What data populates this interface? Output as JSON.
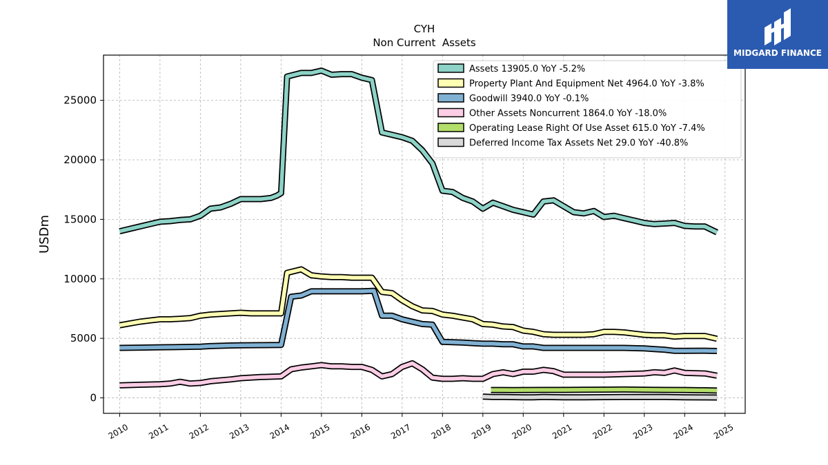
{
  "logo": {
    "text": "MIDGARD FINANCE"
  },
  "chart_data": {
    "type": "line",
    "title": "CYH",
    "subtitle": "Non Current  Assets",
    "xlabel": "",
    "ylabel": "USDm",
    "xlim": [
      2009.6,
      2025.5
    ],
    "ylim": [
      -1300,
      28800
    ],
    "yticks": [
      0,
      5000,
      10000,
      15000,
      20000,
      25000
    ],
    "xticks": [
      "2010",
      "2011",
      "2012",
      "2013",
      "2014",
      "2015",
      "2016",
      "2017",
      "2018",
      "2019",
      "2020",
      "2021",
      "2022",
      "2023",
      "2024",
      "2025"
    ],
    "grid": true,
    "legend_position": "top-right",
    "series": [
      {
        "name": "Assets",
        "legend": "Assets  13905.0 YoY -5.2%",
        "color": "#8dd3c7",
        "points": [
          [
            2010.0,
            14000
          ],
          [
            2010.25,
            14200
          ],
          [
            2010.5,
            14400
          ],
          [
            2010.75,
            14600
          ],
          [
            2011.0,
            14800
          ],
          [
            2011.25,
            14850
          ],
          [
            2011.5,
            14950
          ],
          [
            2011.75,
            15000
          ],
          [
            2012.0,
            15300
          ],
          [
            2012.25,
            15900
          ],
          [
            2012.5,
            16000
          ],
          [
            2012.75,
            16300
          ],
          [
            2013.0,
            16700
          ],
          [
            2013.25,
            16700
          ],
          [
            2013.5,
            16700
          ],
          [
            2013.75,
            16800
          ],
          [
            2013.9,
            17000
          ],
          [
            2014.0,
            17200
          ],
          [
            2014.15,
            27000
          ],
          [
            2014.5,
            27300
          ],
          [
            2014.75,
            27300
          ],
          [
            2015.0,
            27500
          ],
          [
            2015.25,
            27150
          ],
          [
            2015.5,
            27200
          ],
          [
            2015.75,
            27200
          ],
          [
            2016.0,
            26900
          ],
          [
            2016.25,
            26700
          ],
          [
            2016.5,
            22300
          ],
          [
            2016.75,
            22100
          ],
          [
            2017.0,
            21900
          ],
          [
            2017.25,
            21600
          ],
          [
            2017.5,
            20800
          ],
          [
            2017.75,
            19700
          ],
          [
            2018.0,
            17400
          ],
          [
            2018.25,
            17300
          ],
          [
            2018.5,
            16800
          ],
          [
            2018.75,
            16500
          ],
          [
            2019.0,
            15900
          ],
          [
            2019.25,
            16400
          ],
          [
            2019.5,
            16100
          ],
          [
            2019.75,
            15800
          ],
          [
            2020.0,
            15600
          ],
          [
            2020.25,
            15400
          ],
          [
            2020.5,
            16500
          ],
          [
            2020.75,
            16600
          ],
          [
            2021.0,
            16100
          ],
          [
            2021.25,
            15600
          ],
          [
            2021.5,
            15500
          ],
          [
            2021.75,
            15700
          ],
          [
            2022.0,
            15200
          ],
          [
            2022.25,
            15300
          ],
          [
            2022.5,
            15100
          ],
          [
            2022.75,
            14900
          ],
          [
            2023.0,
            14700
          ],
          [
            2023.25,
            14600
          ],
          [
            2023.5,
            14650
          ],
          [
            2023.75,
            14700
          ],
          [
            2024.0,
            14450
          ],
          [
            2024.25,
            14400
          ],
          [
            2024.5,
            14400
          ],
          [
            2024.8,
            13905
          ]
        ]
      },
      {
        "name": "Property Plant And Equipment Net",
        "legend": "Property Plant And Equipment Net  4964.0 YoY -3.8%",
        "color": "#ffffb3",
        "points": [
          [
            2010.0,
            6100
          ],
          [
            2010.25,
            6250
          ],
          [
            2010.5,
            6400
          ],
          [
            2010.75,
            6500
          ],
          [
            2011.0,
            6600
          ],
          [
            2011.25,
            6600
          ],
          [
            2011.5,
            6650
          ],
          [
            2011.75,
            6700
          ],
          [
            2012.0,
            6900
          ],
          [
            2012.25,
            7000
          ],
          [
            2012.5,
            7050
          ],
          [
            2012.75,
            7100
          ],
          [
            2013.0,
            7150
          ],
          [
            2013.25,
            7100
          ],
          [
            2013.5,
            7100
          ],
          [
            2013.75,
            7100
          ],
          [
            2014.0,
            7100
          ],
          [
            2014.15,
            10500
          ],
          [
            2014.5,
            10800
          ],
          [
            2014.75,
            10300
          ],
          [
            2015.0,
            10200
          ],
          [
            2015.25,
            10150
          ],
          [
            2015.5,
            10150
          ],
          [
            2015.75,
            10100
          ],
          [
            2016.0,
            10100
          ],
          [
            2016.25,
            10100
          ],
          [
            2016.5,
            8900
          ],
          [
            2016.75,
            8800
          ],
          [
            2017.0,
            8200
          ],
          [
            2017.25,
            7700
          ],
          [
            2017.5,
            7350
          ],
          [
            2017.75,
            7300
          ],
          [
            2018.0,
            7000
          ],
          [
            2018.25,
            6900
          ],
          [
            2018.5,
            6750
          ],
          [
            2018.75,
            6600
          ],
          [
            2019.0,
            6200
          ],
          [
            2019.25,
            6150
          ],
          [
            2019.5,
            6000
          ],
          [
            2019.75,
            5950
          ],
          [
            2020.0,
            5650
          ],
          [
            2020.25,
            5550
          ],
          [
            2020.5,
            5350
          ],
          [
            2020.75,
            5300
          ],
          [
            2021.0,
            5300
          ],
          [
            2021.25,
            5300
          ],
          [
            2021.5,
            5300
          ],
          [
            2021.75,
            5350
          ],
          [
            2022.0,
            5550
          ],
          [
            2022.25,
            5550
          ],
          [
            2022.5,
            5500
          ],
          [
            2022.75,
            5400
          ],
          [
            2023.0,
            5300
          ],
          [
            2023.25,
            5250
          ],
          [
            2023.5,
            5250
          ],
          [
            2023.75,
            5150
          ],
          [
            2024.0,
            5200
          ],
          [
            2024.25,
            5200
          ],
          [
            2024.5,
            5200
          ],
          [
            2024.8,
            4964
          ]
        ]
      },
      {
        "name": "Goodwill",
        "legend": "Goodwill  3940.0 YoY -0.1%",
        "color": "#80b1d3",
        "points": [
          [
            2010.0,
            4200
          ],
          [
            2010.5,
            4220
          ],
          [
            2011.0,
            4250
          ],
          [
            2011.5,
            4270
          ],
          [
            2012.0,
            4300
          ],
          [
            2012.25,
            4350
          ],
          [
            2012.75,
            4400
          ],
          [
            2013.0,
            4420
          ],
          [
            2013.5,
            4430
          ],
          [
            2014.0,
            4450
          ],
          [
            2014.25,
            8500
          ],
          [
            2014.5,
            8600
          ],
          [
            2014.75,
            8950
          ],
          [
            2015.0,
            8950
          ],
          [
            2015.5,
            8950
          ],
          [
            2016.0,
            8950
          ],
          [
            2016.3,
            9000
          ],
          [
            2016.5,
            6900
          ],
          [
            2016.75,
            6900
          ],
          [
            2017.0,
            6600
          ],
          [
            2017.25,
            6400
          ],
          [
            2017.5,
            6200
          ],
          [
            2017.75,
            6150
          ],
          [
            2018.0,
            4700
          ],
          [
            2018.25,
            4680
          ],
          [
            2018.5,
            4650
          ],
          [
            2018.75,
            4600
          ],
          [
            2019.0,
            4550
          ],
          [
            2019.25,
            4550
          ],
          [
            2019.5,
            4500
          ],
          [
            2019.75,
            4500
          ],
          [
            2020.0,
            4320
          ],
          [
            2020.25,
            4320
          ],
          [
            2020.5,
            4200
          ],
          [
            2020.75,
            4200
          ],
          [
            2021.0,
            4200
          ],
          [
            2021.5,
            4200
          ],
          [
            2022.0,
            4200
          ],
          [
            2022.5,
            4200
          ],
          [
            2023.0,
            4150
          ],
          [
            2023.25,
            4100
          ],
          [
            2023.5,
            4050
          ],
          [
            2023.75,
            3950
          ],
          [
            2024.0,
            3950
          ],
          [
            2024.5,
            3960
          ],
          [
            2024.8,
            3940
          ]
        ]
      },
      {
        "name": "Other Assets Noncurrent",
        "legend": "Other Assets Noncurrent  1864.0 YoY -18.0%",
        "color": "#fccde5",
        "points": [
          [
            2010.0,
            1050
          ],
          [
            2010.5,
            1100
          ],
          [
            2011.0,
            1150
          ],
          [
            2011.25,
            1200
          ],
          [
            2011.5,
            1350
          ],
          [
            2011.75,
            1200
          ],
          [
            2012.0,
            1250
          ],
          [
            2012.25,
            1400
          ],
          [
            2012.75,
            1550
          ],
          [
            2013.0,
            1650
          ],
          [
            2013.5,
            1750
          ],
          [
            2014.0,
            1800
          ],
          [
            2014.25,
            2400
          ],
          [
            2014.5,
            2550
          ],
          [
            2014.75,
            2650
          ],
          [
            2015.0,
            2750
          ],
          [
            2015.25,
            2650
          ],
          [
            2015.5,
            2650
          ],
          [
            2015.75,
            2600
          ],
          [
            2016.0,
            2600
          ],
          [
            2016.25,
            2350
          ],
          [
            2016.5,
            1800
          ],
          [
            2016.75,
            2000
          ],
          [
            2017.0,
            2600
          ],
          [
            2017.25,
            2900
          ],
          [
            2017.5,
            2400
          ],
          [
            2017.75,
            1700
          ],
          [
            2018.0,
            1600
          ],
          [
            2018.25,
            1600
          ],
          [
            2018.5,
            1650
          ],
          [
            2018.75,
            1600
          ],
          [
            2019.0,
            1600
          ],
          [
            2019.25,
            2000
          ],
          [
            2019.5,
            2150
          ],
          [
            2019.75,
            2000
          ],
          [
            2020.0,
            2200
          ],
          [
            2020.25,
            2200
          ],
          [
            2020.5,
            2350
          ],
          [
            2020.75,
            2250
          ],
          [
            2021.0,
            1950
          ],
          [
            2021.5,
            1950
          ],
          [
            2022.0,
            1950
          ],
          [
            2022.5,
            2000
          ],
          [
            2023.0,
            2050
          ],
          [
            2023.25,
            2150
          ],
          [
            2023.5,
            2100
          ],
          [
            2023.75,
            2300
          ],
          [
            2024.0,
            2100
          ],
          [
            2024.5,
            2050
          ],
          [
            2024.8,
            1864
          ]
        ]
      },
      {
        "name": "Operating Lease Right Of Use Asset",
        "legend": "Operating Lease Right Of Use Asset  615.0 YoY -7.4%",
        "color": "#b3de69",
        "points": [
          [
            2019.2,
            660
          ],
          [
            2019.5,
            660
          ],
          [
            2019.75,
            650
          ],
          [
            2020.0,
            660
          ],
          [
            2020.5,
            670
          ],
          [
            2021.0,
            670
          ],
          [
            2021.5,
            680
          ],
          [
            2022.0,
            690
          ],
          [
            2022.5,
            700
          ],
          [
            2023.0,
            680
          ],
          [
            2023.5,
            670
          ],
          [
            2024.0,
            660
          ],
          [
            2024.5,
            640
          ],
          [
            2024.8,
            615
          ]
        ]
      },
      {
        "name": "Deferred Income Tax Assets Net",
        "legend": "Deferred Income Tax Assets Net  29.0 YoY -40.8%",
        "color": "#d9d9d9",
        "points": [
          [
            2019.0,
            100
          ],
          [
            2019.25,
            80
          ],
          [
            2019.5,
            70
          ],
          [
            2019.75,
            60
          ],
          [
            2020.0,
            50
          ],
          [
            2020.25,
            50
          ],
          [
            2020.5,
            80
          ],
          [
            2020.75,
            60
          ],
          [
            2021.0,
            50
          ],
          [
            2021.5,
            50
          ],
          [
            2022.0,
            60
          ],
          [
            2022.5,
            70
          ],
          [
            2023.0,
            80
          ],
          [
            2023.5,
            70
          ],
          [
            2024.0,
            50
          ],
          [
            2024.5,
            40
          ],
          [
            2024.8,
            29
          ]
        ]
      }
    ]
  }
}
